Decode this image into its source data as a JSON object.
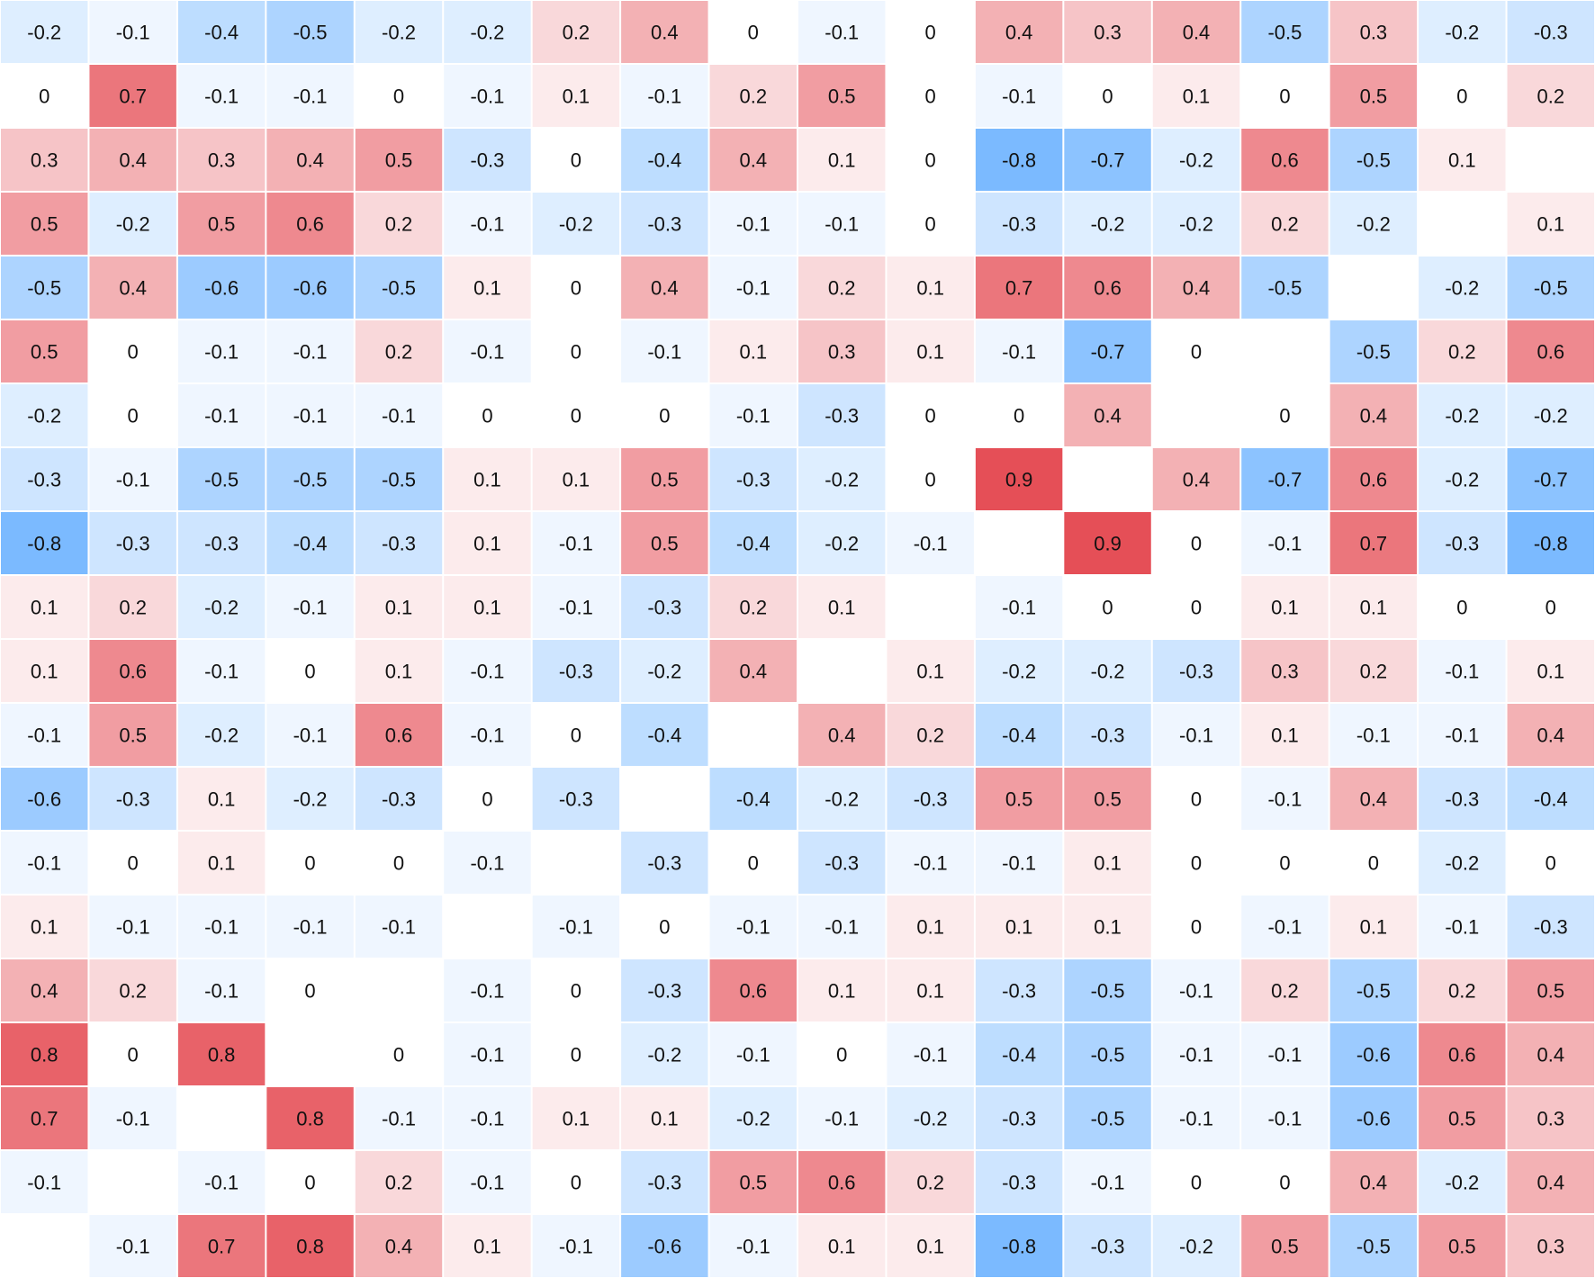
{
  "chart_data": {
    "type": "heatmap",
    "title": "",
    "xlabel": "",
    "ylabel": "",
    "colorbar": "none",
    "color_scale": {
      "min": -1,
      "max": 1,
      "negative_color": "#5aa9ff",
      "zero_color": "#ffffff",
      "positive_color": "#e23b44"
    },
    "grid_color": "#ffffff",
    "text_color": "#111111",
    "rows": [
      [
        "-0.2",
        "-0.1",
        "-0.4",
        "-0.5",
        "-0.2",
        "-0.2",
        "0.2",
        "0.4",
        "0",
        "-0.1",
        "0",
        "0.4",
        "0.3",
        "0.4",
        "-0.5",
        "0.3",
        "-0.2",
        "-0.3"
      ],
      [
        "0",
        "0.7",
        "-0.1",
        "-0.1",
        "0",
        "-0.1",
        "0.1",
        "-0.1",
        "0.2",
        "0.5",
        "0",
        "-0.1",
        "0",
        "0.1",
        "0",
        "0.5",
        "0",
        "0.2"
      ],
      [
        "0.3",
        "0.4",
        "0.3",
        "0.4",
        "0.5",
        "-0.3",
        "0",
        "-0.4",
        "0.4",
        "0.1",
        "0",
        "-0.8",
        "-0.7",
        "-0.2",
        "0.6",
        "-0.5",
        "0.1",
        ""
      ],
      [
        "0.5",
        "-0.2",
        "0.5",
        "0.6",
        "0.2",
        "-0.1",
        "-0.2",
        "-0.3",
        "-0.1",
        "-0.1",
        "0",
        "-0.3",
        "-0.2",
        "-0.2",
        "0.2",
        "-0.2",
        "",
        "0.1"
      ],
      [
        "-0.5",
        "0.4",
        "-0.6",
        "-0.6",
        "-0.5",
        "0.1",
        "0",
        "0.4",
        "-0.1",
        "0.2",
        "0.1",
        "0.7",
        "0.6",
        "0.4",
        "-0.5",
        "",
        "-0.2",
        "-0.5"
      ],
      [
        "0.5",
        "0",
        "-0.1",
        "-0.1",
        "0.2",
        "-0.1",
        "0",
        "-0.1",
        "0.1",
        "0.3",
        "0.1",
        "-0.1",
        "-0.7",
        "0",
        "",
        "-0.5",
        "0.2",
        "0.6"
      ],
      [
        "-0.2",
        "0",
        "-0.1",
        "-0.1",
        "-0.1",
        "0",
        "0",
        "0",
        "-0.1",
        "-0.3",
        "0",
        "0",
        "0.4",
        "",
        "0",
        "0.4",
        "-0.2",
        "-0.2"
      ],
      [
        "-0.3",
        "-0.1",
        "-0.5",
        "-0.5",
        "-0.5",
        "0.1",
        "0.1",
        "0.5",
        "-0.3",
        "-0.2",
        "0",
        "0.9",
        "",
        "0.4",
        "-0.7",
        "0.6",
        "-0.2",
        "-0.7"
      ],
      [
        "-0.8",
        "-0.3",
        "-0.3",
        "-0.4",
        "-0.3",
        "0.1",
        "-0.1",
        "0.5",
        "-0.4",
        "-0.2",
        "-0.1",
        "",
        "0.9",
        "0",
        "-0.1",
        "0.7",
        "-0.3",
        "-0.8"
      ],
      [
        "0.1",
        "0.2",
        "-0.2",
        "-0.1",
        "0.1",
        "0.1",
        "-0.1",
        "-0.3",
        "0.2",
        "0.1",
        "",
        "-0.1",
        "0",
        "0",
        "0.1",
        "0.1",
        "0",
        "0"
      ],
      [
        "0.1",
        "0.6",
        "-0.1",
        "0",
        "0.1",
        "-0.1",
        "-0.3",
        "-0.2",
        "0.4",
        "",
        "0.1",
        "-0.2",
        "-0.2",
        "-0.3",
        "0.3",
        "0.2",
        "-0.1",
        "0.1"
      ],
      [
        "-0.1",
        "0.5",
        "-0.2",
        "-0.1",
        "0.6",
        "-0.1",
        "0",
        "-0.4",
        "",
        "0.4",
        "0.2",
        "-0.4",
        "-0.3",
        "-0.1",
        "0.1",
        "-0.1",
        "-0.1",
        "0.4"
      ],
      [
        "-0.6",
        "-0.3",
        "0.1",
        "-0.2",
        "-0.3",
        "0",
        "-0.3",
        "",
        "-0.4",
        "-0.2",
        "-0.3",
        "0.5",
        "0.5",
        "0",
        "-0.1",
        "0.4",
        "-0.3",
        "-0.4"
      ],
      [
        "-0.1",
        "0",
        "0.1",
        "0",
        "0",
        "-0.1",
        "",
        "-0.3",
        "0",
        "-0.3",
        "-0.1",
        "-0.1",
        "0.1",
        "0",
        "0",
        "0",
        "-0.2",
        "0"
      ],
      [
        "0.1",
        "-0.1",
        "-0.1",
        "-0.1",
        "-0.1",
        "",
        "-0.1",
        "0",
        "-0.1",
        "-0.1",
        "0.1",
        "0.1",
        "0.1",
        "0",
        "-0.1",
        "0.1",
        "-0.1",
        "-0.3"
      ],
      [
        "0.4",
        "0.2",
        "-0.1",
        "0",
        "",
        "-0.1",
        "0",
        "-0.3",
        "0.6",
        "0.1",
        "0.1",
        "-0.3",
        "-0.5",
        "-0.1",
        "0.2",
        "-0.5",
        "0.2",
        "0.5"
      ],
      [
        "0.8",
        "0",
        "0.8",
        "",
        "0",
        "-0.1",
        "0",
        "-0.2",
        "-0.1",
        "0",
        "-0.1",
        "-0.4",
        "-0.5",
        "-0.1",
        "-0.1",
        "-0.6",
        "0.6",
        "0.4"
      ],
      [
        "0.7",
        "-0.1",
        "",
        "0.8",
        "-0.1",
        "-0.1",
        "0.1",
        "0.1",
        "-0.2",
        "-0.1",
        "-0.2",
        "-0.3",
        "-0.5",
        "-0.1",
        "-0.1",
        "-0.6",
        "0.5",
        "0.3"
      ],
      [
        "-0.1",
        "",
        "-0.1",
        "0",
        "0.2",
        "-0.1",
        "0",
        "-0.3",
        "0.5",
        "0.6",
        "0.2",
        "-0.3",
        "-0.1",
        "0",
        "0",
        "0.4",
        "-0.2",
        "0.4"
      ],
      [
        "",
        "-0.1",
        "0.7",
        "0.8",
        "0.4",
        "0.1",
        "-0.1",
        "-0.6",
        "-0.1",
        "0.1",
        "0.1",
        "-0.8",
        "-0.3",
        "-0.2",
        "0.5",
        "-0.5",
        "0.5",
        "0.3"
      ]
    ]
  }
}
